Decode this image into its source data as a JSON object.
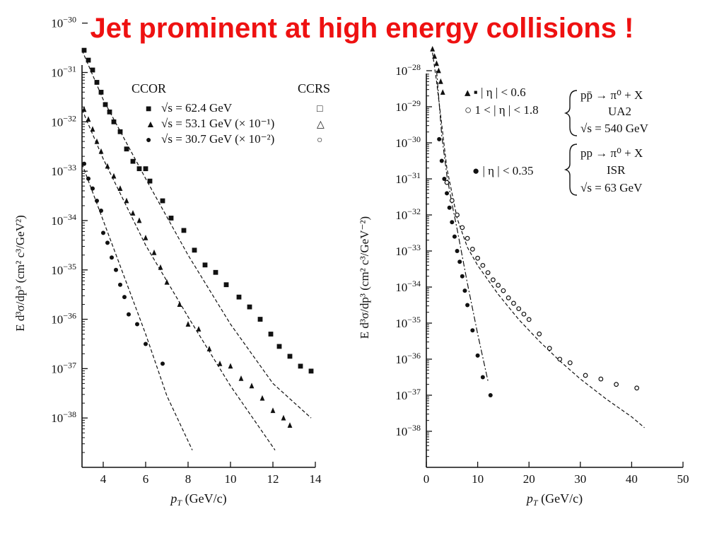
{
  "slide": {
    "title": "Jet prominent at high energy collisions !"
  },
  "colors": {
    "title": "#ee1111",
    "ink": "#111111"
  },
  "chart_data": [
    {
      "type": "scatter",
      "name": "left",
      "xlabel_main": "p",
      "xlabel_sub": "T",
      "xlabel_rest": " (GeV/c)",
      "ylabel": "E d³σ/dp³ (cm² c³/GeV²)",
      "log_y": true,
      "xlim": [
        3,
        14
      ],
      "ylim_exp": [
        -39,
        -30
      ],
      "x_ticks": [
        4,
        6,
        8,
        10,
        12,
        14
      ],
      "y_tick_exps": [
        -30,
        -31,
        -32,
        -33,
        -34,
        -35,
        -36,
        -37,
        -38
      ],
      "legend": {
        "header_left": "CCOR",
        "header_right": "CCRS",
        "entries": [
          {
            "label": "√s = 62.4 GeV",
            "marker_left": "■",
            "marker_right": "□"
          },
          {
            "label": "√s = 53.1 GeV (× 10⁻¹)",
            "marker_left": "▲",
            "marker_right": "△"
          },
          {
            "label": "√s = 30.7 GeV (× 10⁻²)",
            "marker_left": "●",
            "marker_right": "○"
          }
        ]
      },
      "series": [
        {
          "marker": "square",
          "x": [
            3.1,
            3.3,
            3.5,
            3.7,
            3.9,
            4.1,
            4.3,
            4.5,
            4.8,
            5.1,
            5.4,
            5.7,
            6.0,
            6.2,
            6.8,
            7.2,
            7.8,
            8.3,
            8.8,
            9.3,
            9.8,
            10.4,
            10.9,
            11.4,
            11.9,
            12.3,
            12.8,
            13.3,
            13.8
          ],
          "y": [
            -30.55,
            -30.75,
            -30.95,
            -31.2,
            -31.4,
            -31.65,
            -31.8,
            -32.0,
            -32.2,
            -32.55,
            -32.8,
            -32.95,
            -32.95,
            -33.2,
            -33.6,
            -33.95,
            -34.2,
            -34.6,
            -34.9,
            -35.05,
            -35.3,
            -35.55,
            -35.75,
            -36.0,
            -36.3,
            -36.55,
            -36.75,
            -36.95,
            -37.05
          ]
        },
        {
          "marker": "triangle",
          "x": [
            3.1,
            3.3,
            3.5,
            3.7,
            3.9,
            4.2,
            4.5,
            4.8,
            5.1,
            5.4,
            5.7,
            6.0,
            6.4,
            6.7,
            7.0,
            7.6,
            8.0,
            8.5,
            9.0,
            9.5,
            10.0,
            10.5,
            11.0,
            11.5,
            12.0,
            12.5,
            12.8
          ],
          "y": [
            -31.75,
            -31.95,
            -32.15,
            -32.4,
            -32.6,
            -32.9,
            -33.1,
            -33.35,
            -33.6,
            -33.85,
            -34.0,
            -34.35,
            -34.65,
            -34.95,
            -35.25,
            -35.7,
            -36.1,
            -36.2,
            -36.6,
            -36.9,
            -36.95,
            -37.2,
            -37.35,
            -37.6,
            -37.85,
            -38.0,
            -38.15
          ]
        },
        {
          "marker": "circle",
          "x": [
            3.1,
            3.3,
            3.5,
            3.7,
            3.9,
            4.0,
            4.2,
            4.4,
            4.6,
            4.8,
            5.0,
            5.2,
            5.6,
            6.0,
            6.8
          ],
          "y": [
            -32.85,
            -33.15,
            -33.35,
            -33.6,
            -33.8,
            -34.25,
            -34.45,
            -34.75,
            -35.0,
            -35.3,
            -35.55,
            -35.9,
            -36.1,
            -36.5,
            -36.9
          ]
        }
      ],
      "fits": [
        {
          "x": [
            3.0,
            4,
            6,
            8,
            10,
            12,
            13.8
          ],
          "y": [
            -30.55,
            -31.55,
            -33.15,
            -34.7,
            -36.1,
            -37.3,
            -38.0
          ]
        },
        {
          "x": [
            3.0,
            4,
            6,
            8,
            10,
            12.1
          ],
          "y": [
            -31.75,
            -32.75,
            -34.5,
            -35.95,
            -37.35,
            -38.65
          ]
        },
        {
          "x": [
            3.0,
            4,
            5,
            6,
            7,
            8.2
          ],
          "y": [
            -32.85,
            -34.0,
            -35.15,
            -36.3,
            -37.55,
            -38.65
          ]
        }
      ]
    },
    {
      "type": "scatter",
      "name": "right",
      "xlabel_main": "p",
      "xlabel_sub": "T",
      "xlabel_rest": " (GeV/c)",
      "ylabel": "E d³σ/dp³ (cm² c³/GeV⁻²)",
      "log_y": true,
      "xlim": [
        0,
        50
      ],
      "ylim_exp": [
        -39,
        -27.6
      ],
      "x_ticks": [
        0,
        10,
        20,
        30,
        40,
        50
      ],
      "y_tick_exps": [
        -28,
        -29,
        -30,
        -31,
        -32,
        -33,
        -34,
        -35,
        -36,
        -37,
        -38
      ],
      "legend": {
        "groups": [
          {
            "rows": [
              "▴ ▪  | η | < 0.6",
              "○ 1 < | η | < 1.8"
            ],
            "desc": [
              "pp̄ → π⁰ + X",
              "UA2",
              "√s = 540 GeV"
            ]
          },
          {
            "rows": [
              "●  | η | < 0.35"
            ],
            "desc": [
              "pp → π⁰ + X",
              "ISR",
              "√s = 63 GeV"
            ]
          }
        ]
      },
      "series": [
        {
          "marker": "open-circle",
          "x": [
            4,
            5,
            6,
            7,
            8,
            9,
            10,
            11,
            12,
            13,
            14,
            15,
            16,
            17,
            18,
            19,
            20,
            22,
            24,
            26,
            28,
            31,
            34,
            37,
            41
          ],
          "y": [
            -31.1,
            -31.6,
            -32.0,
            -32.35,
            -32.65,
            -32.95,
            -33.2,
            -33.4,
            -33.6,
            -33.8,
            -33.95,
            -34.1,
            -34.3,
            -34.45,
            -34.6,
            -34.75,
            -34.9,
            -35.3,
            -35.7,
            -36.0,
            -36.1,
            -36.45,
            -36.55,
            -36.7,
            -36.8
          ]
        },
        {
          "marker": "triangle",
          "x": [
            1.2,
            1.6,
            2.0,
            2.4,
            2.8,
            3.2
          ],
          "y": [
            -27.4,
            -27.6,
            -27.8,
            -28.0,
            -28.3,
            -28.6
          ]
        },
        {
          "marker": "dot",
          "x": [
            2.5,
            3.0,
            3.5,
            4.0,
            4.5,
            5.0,
            5.5,
            6.0,
            6.5,
            7.0,
            7.5,
            8.0,
            9.0,
            10.0,
            11.0,
            12.5
          ],
          "y": [
            -29.9,
            -30.5,
            -31.0,
            -31.4,
            -31.8,
            -32.2,
            -32.6,
            -33.0,
            -33.3,
            -33.7,
            -34.1,
            -34.5,
            -35.2,
            -35.9,
            -36.5,
            -37.0
          ]
        }
      ],
      "fits": [
        {
          "style": "dashed",
          "x": [
            1.2,
            2,
            3,
            4,
            6,
            8,
            10,
            14,
            18,
            22,
            26,
            30,
            35,
            40,
            42.5
          ],
          "y": [
            -27.5,
            -28.3,
            -29.5,
            -30.7,
            -32.1,
            -32.9,
            -33.4,
            -34.2,
            -34.9,
            -35.5,
            -36.05,
            -36.55,
            -37.1,
            -37.6,
            -37.9
          ]
        },
        {
          "style": "dashdot",
          "x": [
            2.0,
            3,
            4,
            5,
            6,
            8,
            10,
            12
          ],
          "y": [
            -28.0,
            -29.8,
            -30.9,
            -31.7,
            -32.4,
            -33.9,
            -35.3,
            -36.6
          ]
        }
      ]
    }
  ]
}
